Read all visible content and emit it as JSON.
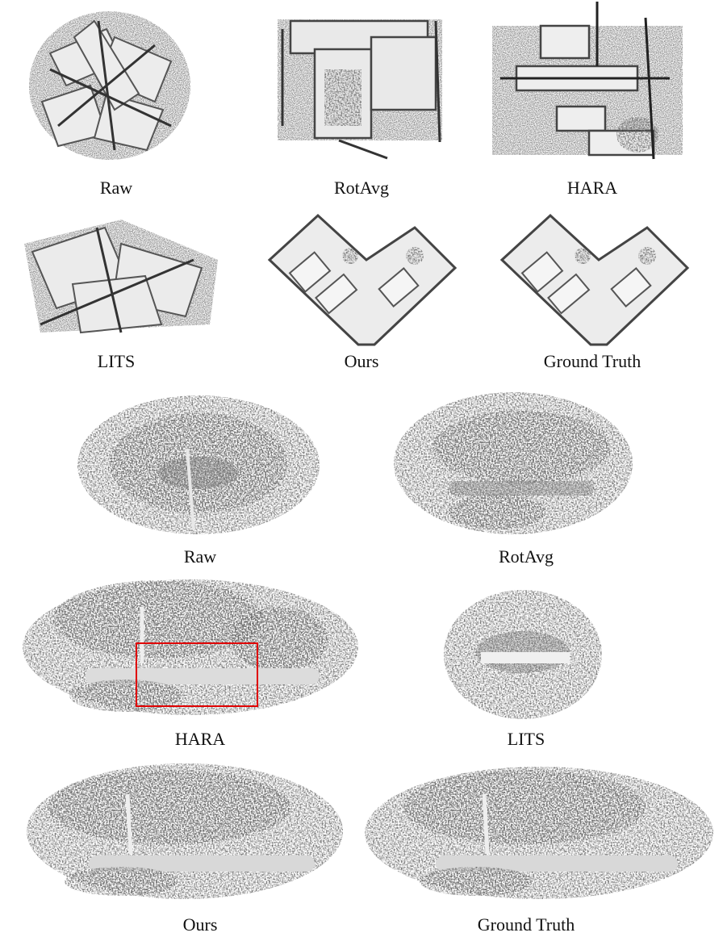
{
  "indoor": {
    "row1": [
      "Raw",
      "RotAvg",
      "HARA"
    ],
    "row2": [
      "LITS",
      "Ours",
      "Ground Truth"
    ]
  },
  "outdoor": {
    "row1": [
      "Raw",
      "RotAvg"
    ],
    "row2": [
      "HARA",
      "LITS"
    ],
    "row3": [
      "Ours",
      "Ground Truth"
    ]
  },
  "colors": {
    "highlight_box": "#e00000",
    "ink": "#3a3a3a",
    "surface": "#e6e6e6"
  }
}
